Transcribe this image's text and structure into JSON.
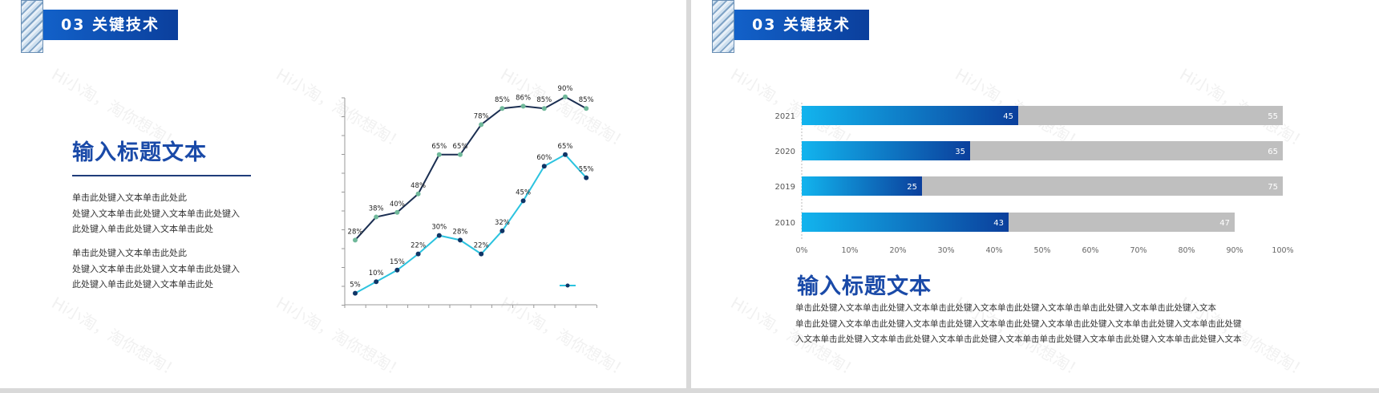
{
  "slides": [
    {
      "header": "03 关键技术",
      "title": "输入标题文本",
      "paragraph1": [
        "单击此处键入文本单击此处此",
        "处键入文本单击此处键入文本单击此处键入",
        "此处键入单击此处键入文本单击此处"
      ],
      "paragraph2": [
        "单击此处键入文本单击此处此",
        "处键入文本单击此处键入文本单击此处键入",
        "此处键入单击此处键入文本单击此处"
      ],
      "watermark": "Hi小淘，淘你想淘！"
    },
    {
      "header": "03 关键技术",
      "title": "输入标题文本",
      "body": [
        "单击此处键入文本单击此处键入文本单击此处键入文本单击此处键入文本单击单击此处键入文本单击此处键入文本",
        "单击此处键入文本单击此处键入文本单击此处键入文本单击此处键入文本单击此处键入文本单击此处键入文本单击此处键",
        "入文本单击此处键入文本单击此处键入文本单击此处键入文本单击单击此处键入文本单击此处键入文本单击此处键入文本"
      ],
      "watermark": "Hi小淘，淘你想淘！"
    }
  ],
  "chart_data": [
    {
      "type": "line",
      "x": [
        1,
        2,
        3,
        4,
        5,
        6,
        7,
        8,
        9,
        10,
        11,
        12
      ],
      "series": [
        {
          "values": [
            28,
            38,
            40,
            48,
            65,
            65,
            78,
            85,
            86,
            85,
            90,
            85
          ],
          "labels": [
            "28%",
            "38%",
            "40%",
            "48%",
            "65%",
            "65%",
            "78%",
            "85%",
            "86%",
            "85%",
            "90%",
            "85%"
          ],
          "color": "#1b2f52"
        },
        {
          "values": [
            5,
            10,
            15,
            22,
            30,
            28,
            22,
            32,
            45,
            60,
            65,
            55
          ],
          "labels": [
            "5%",
            "10%",
            "15%",
            "22%",
            "30%",
            "28%",
            "22%",
            "32%",
            "45%",
            "60%",
            "65%",
            "55%"
          ],
          "color": "#2cc3df"
        }
      ],
      "ylim": [
        0,
        100
      ],
      "legend": "bottom-right",
      "grid": false
    },
    {
      "type": "bar",
      "orientation": "horizontal",
      "stacked": true,
      "categories": [
        "2021",
        "2020",
        "2019",
        "2010"
      ],
      "series": [
        {
          "values": [
            45,
            35,
            25,
            43
          ],
          "color": "#1b74d8"
        },
        {
          "values": [
            55,
            65,
            75,
            47
          ],
          "color": "#bfbfbf"
        }
      ],
      "xticks": [
        "0%",
        "10%",
        "20%",
        "30%",
        "40%",
        "50%",
        "60%",
        "70%",
        "80%",
        "90%",
        "100%"
      ],
      "xlim": [
        0,
        100
      ],
      "grid": false
    }
  ]
}
